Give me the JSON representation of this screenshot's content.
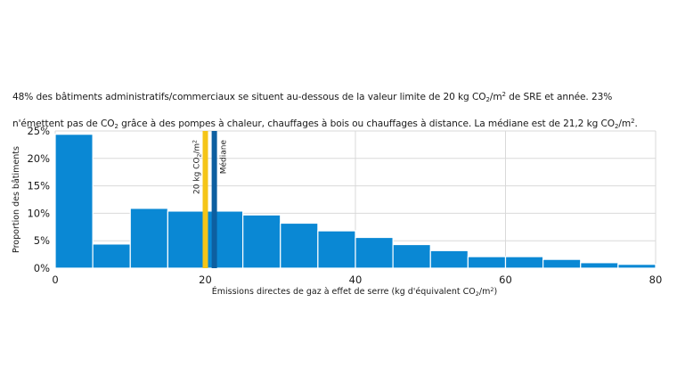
{
  "caption": {
    "line1_a": "48% des bâtiments administratifs/commerciaux se situent au-dessous de la valeur limite de 20 kg CO",
    "line1_b": "/m",
    "line1_c": " de SRE et année. 23%",
    "line2_a": "n'émettent pas de CO",
    "line2_b": " grâce à des pompes à chaleur, chauffages à bois ou chauffages à distance. La médiane est de 21,2 kg CO",
    "line2_c": "/m",
    "line2_d": ".",
    "sub2": "2",
    "sup2": "2"
  },
  "chart_data": {
    "type": "bar",
    "bins": [
      {
        "x0": 0,
        "x1": 5,
        "value": 24.4
      },
      {
        "x0": 5,
        "x1": 10,
        "value": 4.4
      },
      {
        "x0": 10,
        "x1": 15,
        "value": 10.9
      },
      {
        "x0": 15,
        "x1": 20,
        "value": 10.4
      },
      {
        "x0": 20,
        "x1": 25,
        "value": 10.4
      },
      {
        "x0": 25,
        "x1": 30,
        "value": 9.7
      },
      {
        "x0": 30,
        "x1": 35,
        "value": 8.2
      },
      {
        "x0": 35,
        "x1": 40,
        "value": 6.8
      },
      {
        "x0": 40,
        "x1": 45,
        "value": 5.6
      },
      {
        "x0": 45,
        "x1": 50,
        "value": 4.3
      },
      {
        "x0": 50,
        "x1": 55,
        "value": 3.2
      },
      {
        "x0": 55,
        "x1": 60,
        "value": 2.1
      },
      {
        "x0": 60,
        "x1": 65,
        "value": 2.1
      },
      {
        "x0": 65,
        "x1": 70,
        "value": 1.6
      },
      {
        "x0": 70,
        "x1": 75,
        "value": 1.0
      },
      {
        "x0": 75,
        "x1": 80,
        "value": 0.7
      }
    ],
    "xlim": [
      0,
      80
    ],
    "ylim": [
      0,
      25
    ],
    "xticks": [
      0,
      20,
      40,
      60,
      80
    ],
    "yticks": [
      0,
      5,
      10,
      15,
      20,
      25
    ],
    "ytick_labels": [
      "0%",
      "5%",
      "10%",
      "15%",
      "20%",
      "25%"
    ],
    "xlabel_a": "Émissions directes de gaz à effet de serre (kg d'équivalent CO",
    "xlabel_b": "/m",
    "xlabel_c": ")",
    "ylabel": "Proportion des bâtiments",
    "grid": true,
    "markers": [
      {
        "x": 20,
        "label_a": "20 kg CO",
        "label_b": "/m",
        "color": "#f5c518"
      },
      {
        "x": 21.2,
        "label_a": "Médiane",
        "label_b": "",
        "color": "#0d5fa0"
      }
    ],
    "bar_color": "#0a88d4"
  }
}
